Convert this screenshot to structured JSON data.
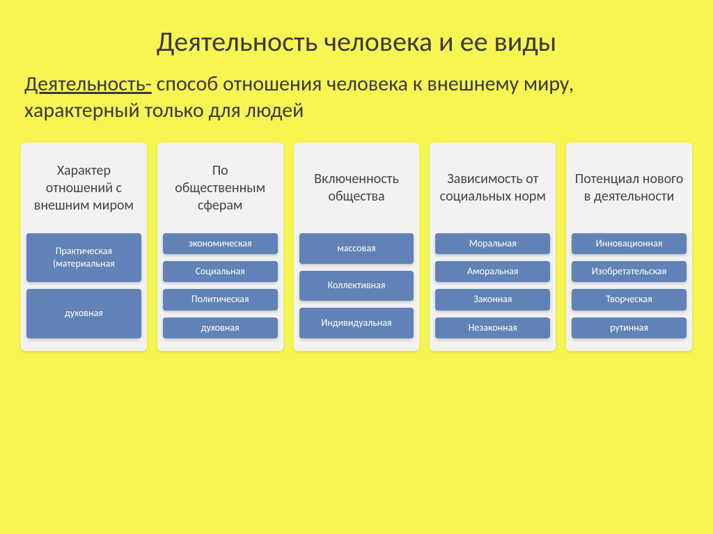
{
  "title": "Деятельность человека и ее виды",
  "definition_term": "Деятельность-",
  "definition_rest": " способ отношения человека к внешнему миру, характерный только для людей",
  "background_color": "#f7f552",
  "column_bg": "#f2f2f2",
  "item_bg": "#6182b6",
  "item_text_color": "#ffffff",
  "header_text_color": "#444444",
  "title_fontsize": 40,
  "definition_fontsize": 30,
  "header_fontsize": 20,
  "item_fontsize": 14,
  "columns": [
    {
      "header": "Характер отношений с внешним миром",
      "items": [
        "Практическая (материальная",
        "духовная"
      ]
    },
    {
      "header": "По общественным сферам",
      "items": [
        "экономическая",
        "Социальная",
        "Политическая",
        "духовная"
      ]
    },
    {
      "header": "Включенность общества",
      "items": [
        "массовая",
        "Коллективная",
        "Индивидуальная"
      ]
    },
    {
      "header": "Зависимость от социальных норм",
      "items": [
        "Моральная",
        "Аморальная",
        "Законная",
        "Незаконная"
      ]
    },
    {
      "header": "Потенциал нового в деятельности",
      "items": [
        "Инновационная",
        "Изобретательская",
        "Творческая",
        "рутинная"
      ]
    }
  ]
}
